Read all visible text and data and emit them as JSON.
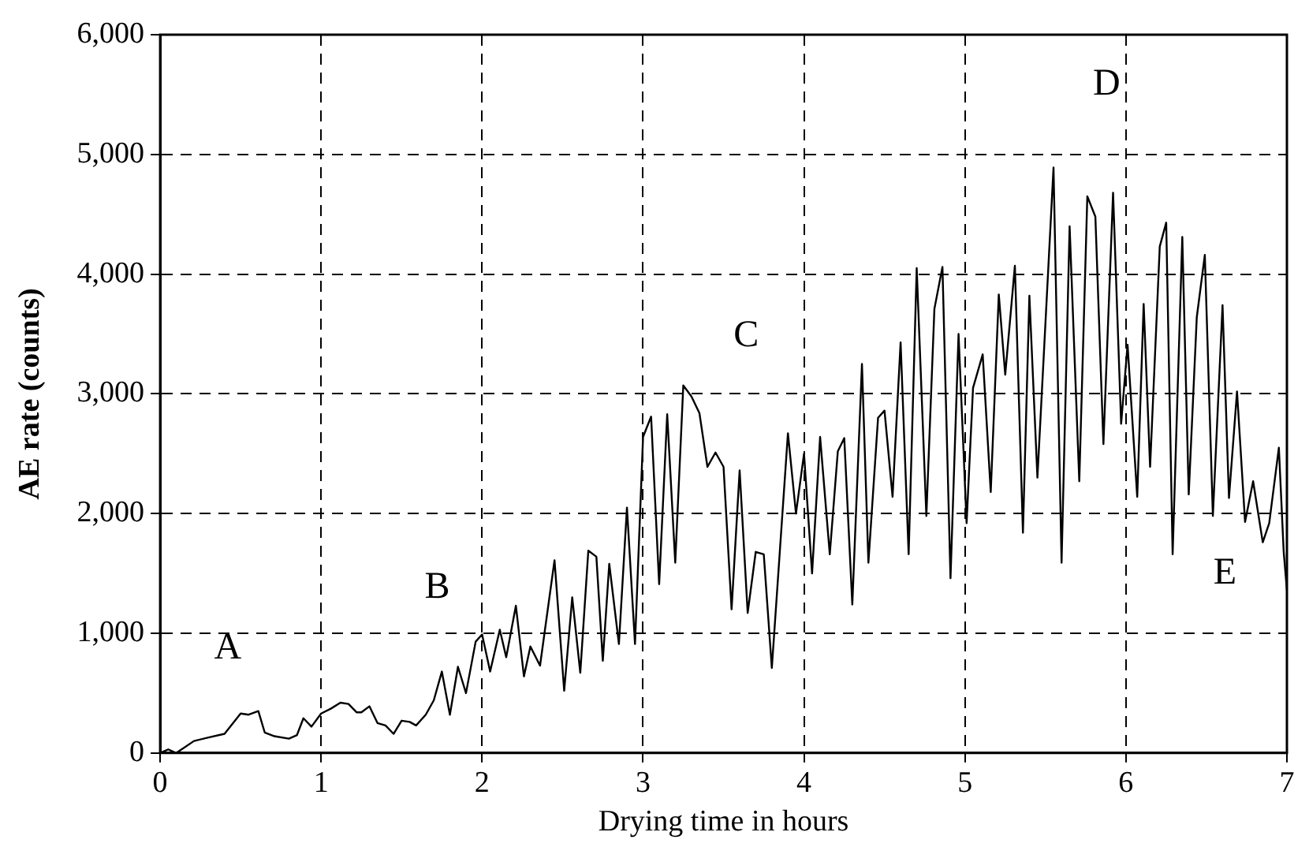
{
  "chart_data": {
    "type": "line",
    "xlabel": "Drying time in hours",
    "ylabel": "AE rate (counts)",
    "x": [
      0,
      0.05,
      0.1,
      0.21,
      0.3,
      0.4,
      0.5,
      0.55,
      0.61,
      0.65,
      0.71,
      0.8,
      0.85,
      0.89,
      0.94,
      1.0,
      1.06,
      1.12,
      1.17,
      1.22,
      1.25,
      1.3,
      1.35,
      1.4,
      1.45,
      1.5,
      1.55,
      1.59,
      1.65,
      1.7,
      1.75,
      1.8,
      1.85,
      1.9,
      1.96,
      2.0,
      2.05,
      2.11,
      2.15,
      2.21,
      2.26,
      2.3,
      2.36,
      2.45,
      2.51,
      2.56,
      2.61,
      2.66,
      2.71,
      2.75,
      2.79,
      2.85,
      2.9,
      2.95,
      3.0,
      3.05,
      3.1,
      3.15,
      3.2,
      3.25,
      3.3,
      3.35,
      3.4,
      3.45,
      3.5,
      3.55,
      3.6,
      3.65,
      3.7,
      3.75,
      3.8,
      3.9,
      3.95,
      4.0,
      4.05,
      4.1,
      4.16,
      4.21,
      4.25,
      4.3,
      4.36,
      4.4,
      4.46,
      4.5,
      4.55,
      4.6,
      4.65,
      4.7,
      4.76,
      4.81,
      4.86,
      4.91,
      4.96,
      5.01,
      5.05,
      5.11,
      5.16,
      5.21,
      5.25,
      5.31,
      5.36,
      5.4,
      5.45,
      5.55,
      5.6,
      5.65,
      5.71,
      5.76,
      5.81,
      5.86,
      5.92,
      5.97,
      6.01,
      6.07,
      6.11,
      6.15,
      6.21,
      6.25,
      6.29,
      6.35,
      6.39,
      6.44,
      6.49,
      6.54,
      6.6,
      6.64,
      6.69,
      6.74,
      6.79,
      6.85,
      6.89,
      6.95,
      6.98,
      7.0
    ],
    "series": [
      {
        "color": "#000000",
        "values": [
          0,
          30,
          0,
          100,
          130,
          160,
          330,
          320,
          350,
          170,
          140,
          120,
          150,
          290,
          220,
          330,
          370,
          420,
          410,
          340,
          340,
          390,
          250,
          230,
          160,
          270,
          260,
          230,
          320,
          440,
          680,
          320,
          720,
          500,
          930,
          990,
          680,
          1030,
          800,
          1230,
          640,
          890,
          730,
          1610,
          520,
          1300,
          670,
          1690,
          1640,
          770,
          1580,
          910,
          2050,
          910,
          2640,
          2810,
          1410,
          2830,
          1590,
          3070,
          2980,
          2840,
          2390,
          2510,
          2390,
          1200,
          2360,
          1170,
          1680,
          1660,
          710,
          2670,
          2000,
          2500,
          1500,
          2640,
          1660,
          2520,
          2630,
          1240,
          3250,
          1590,
          2800,
          2860,
          2140,
          3430,
          1660,
          4050,
          1980,
          3710,
          4060,
          1460,
          3500,
          1920,
          3050,
          3330,
          2180,
          3830,
          3160,
          4070,
          1840,
          3820,
          2300,
          4890,
          1590,
          4400,
          2270,
          4650,
          4480,
          2580,
          4680,
          2750,
          3410,
          2140,
          3750,
          2390,
          4230,
          4430,
          1660,
          4310,
          2160,
          3640,
          4160,
          1980,
          3740,
          2130,
          3020,
          1930,
          2270,
          1760,
          1920,
          2550,
          1680,
          1360
        ]
      }
    ],
    "xlim": [
      0,
      7
    ],
    "xticks": [
      0,
      1,
      2,
      3,
      4,
      5,
      6,
      7
    ],
    "ylim": [
      0,
      6000
    ],
    "yticks": [
      0,
      {
        "value": 1000,
        "label": "1,000"
      },
      {
        "value": 2000,
        "label": "2,000"
      },
      {
        "value": 3000,
        "label": "3,000"
      },
      {
        "value": 4000,
        "label": "4,000"
      },
      {
        "value": 5000,
        "label": "5,000"
      },
      {
        "value": 6000,
        "label": "6,000"
      }
    ],
    "grid": true,
    "legend": false,
    "marker": "none",
    "line_style": "solid",
    "annotations": [
      "A",
      "B",
      "C",
      "D",
      "E"
    ]
  }
}
